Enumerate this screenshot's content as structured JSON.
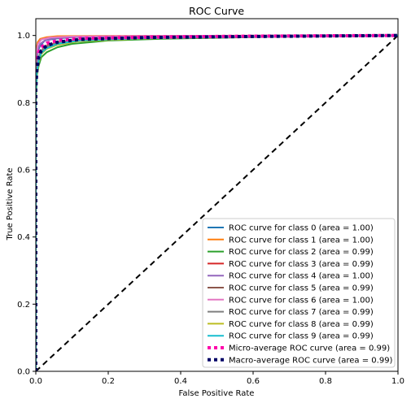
{
  "chart_data": {
    "type": "line",
    "title": "ROC Curve",
    "xlabel": "False Positive Rate",
    "ylabel": "True Positive Rate",
    "xlim": [
      0.0,
      1.0
    ],
    "ylim": [
      0.0,
      1.05
    ],
    "xticks": [
      "0.0",
      "0.2",
      "0.4",
      "0.6",
      "0.8",
      "1.0"
    ],
    "yticks": [
      "0.0",
      "0.2",
      "0.4",
      "0.6",
      "0.8",
      "1.0"
    ],
    "grid": false,
    "legend_position": "lower-right",
    "series": [
      {
        "name": "ROC curve for class 0 (area = 1.00)",
        "color": "#1f77b4",
        "style": "solid",
        "points": [
          [
            0,
            0
          ],
          [
            0,
            0.85
          ],
          [
            0.002,
            0.92
          ],
          [
            0.006,
            0.955
          ],
          [
            0.012,
            0.97
          ],
          [
            0.025,
            0.985
          ],
          [
            0.05,
            0.99
          ],
          [
            0.1,
            0.995
          ],
          [
            0.3,
            0.998
          ],
          [
            0.6,
            0.999
          ],
          [
            1,
            1
          ]
        ]
      },
      {
        "name": "ROC curve for class 1 (area = 1.00)",
        "color": "#ff7f0e",
        "style": "solid",
        "points": [
          [
            0,
            0
          ],
          [
            0,
            0.92
          ],
          [
            0.002,
            0.96
          ],
          [
            0.005,
            0.98
          ],
          [
            0.012,
            0.99
          ],
          [
            0.03,
            0.995
          ],
          [
            0.06,
            0.998
          ],
          [
            0.2,
            0.999
          ],
          [
            1,
            1
          ]
        ]
      },
      {
        "name": "ROC curve for class 2 (area = 0.99)",
        "color": "#2ca02c",
        "style": "solid",
        "points": [
          [
            0,
            0
          ],
          [
            0,
            0.8
          ],
          [
            0.003,
            0.88
          ],
          [
            0.008,
            0.91
          ],
          [
            0.015,
            0.935
          ],
          [
            0.03,
            0.95
          ],
          [
            0.06,
            0.965
          ],
          [
            0.1,
            0.975
          ],
          [
            0.2,
            0.985
          ],
          [
            0.35,
            0.99
          ],
          [
            0.6,
            0.995
          ],
          [
            1,
            1
          ]
        ]
      },
      {
        "name": "ROC curve for class 3 (area = 0.99)",
        "color": "#d62728",
        "style": "solid",
        "points": [
          [
            0,
            0
          ],
          [
            0,
            0.84
          ],
          [
            0.003,
            0.9
          ],
          [
            0.008,
            0.935
          ],
          [
            0.015,
            0.955
          ],
          [
            0.03,
            0.97
          ],
          [
            0.06,
            0.98
          ],
          [
            0.12,
            0.988
          ],
          [
            0.3,
            0.994
          ],
          [
            0.6,
            0.997
          ],
          [
            1,
            1
          ]
        ]
      },
      {
        "name": "ROC curve for class 4 (area = 1.00)",
        "color": "#9467bd",
        "style": "solid",
        "points": [
          [
            0,
            0
          ],
          [
            0,
            0.88
          ],
          [
            0.002,
            0.93
          ],
          [
            0.006,
            0.96
          ],
          [
            0.012,
            0.975
          ],
          [
            0.025,
            0.985
          ],
          [
            0.05,
            0.992
          ],
          [
            0.1,
            0.996
          ],
          [
            0.3,
            0.998
          ],
          [
            1,
            1
          ]
        ]
      },
      {
        "name": "ROC curve for class 5 (area = 0.99)",
        "color": "#8c564b",
        "style": "solid",
        "points": [
          [
            0,
            0
          ],
          [
            0,
            0.82
          ],
          [
            0.003,
            0.89
          ],
          [
            0.008,
            0.93
          ],
          [
            0.015,
            0.95
          ],
          [
            0.03,
            0.965
          ],
          [
            0.06,
            0.978
          ],
          [
            0.12,
            0.987
          ],
          [
            0.3,
            0.993
          ],
          [
            0.6,
            0.997
          ],
          [
            1,
            1
          ]
        ]
      },
      {
        "name": "ROC curve for class 6 (area = 1.00)",
        "color": "#e377c2",
        "style": "solid",
        "points": [
          [
            0,
            0
          ],
          [
            0,
            0.9
          ],
          [
            0.002,
            0.95
          ],
          [
            0.006,
            0.975
          ],
          [
            0.015,
            0.988
          ],
          [
            0.04,
            0.994
          ],
          [
            0.1,
            0.997
          ],
          [
            0.3,
            0.999
          ],
          [
            1,
            1
          ]
        ]
      },
      {
        "name": "ROC curve for class 7 (area = 0.99)",
        "color": "#7f7f7f",
        "style": "solid",
        "points": [
          [
            0,
            0
          ],
          [
            0,
            0.83
          ],
          [
            0.003,
            0.9
          ],
          [
            0.008,
            0.935
          ],
          [
            0.015,
            0.955
          ],
          [
            0.03,
            0.968
          ],
          [
            0.06,
            0.978
          ],
          [
            0.12,
            0.986
          ],
          [
            0.3,
            0.993
          ],
          [
            0.6,
            0.997
          ],
          [
            1,
            1
          ]
        ]
      },
      {
        "name": "ROC curve for class 8 (area = 0.99)",
        "color": "#bcbd22",
        "style": "solid",
        "points": [
          [
            0,
            0
          ],
          [
            0,
            0.8
          ],
          [
            0.003,
            0.88
          ],
          [
            0.008,
            0.92
          ],
          [
            0.015,
            0.945
          ],
          [
            0.03,
            0.96
          ],
          [
            0.06,
            0.972
          ],
          [
            0.12,
            0.983
          ],
          [
            0.3,
            0.991
          ],
          [
            0.6,
            0.996
          ],
          [
            1,
            1
          ]
        ]
      },
      {
        "name": "ROC curve for class 9 (area = 0.99)",
        "color": "#17becf",
        "style": "solid",
        "points": [
          [
            0,
            0
          ],
          [
            0,
            0.82
          ],
          [
            0.003,
            0.89
          ],
          [
            0.008,
            0.925
          ],
          [
            0.015,
            0.948
          ],
          [
            0.03,
            0.962
          ],
          [
            0.06,
            0.975
          ],
          [
            0.12,
            0.985
          ],
          [
            0.3,
            0.992
          ],
          [
            0.6,
            0.996
          ],
          [
            1,
            1
          ]
        ]
      },
      {
        "name": "Micro-average ROC curve (area = 0.99)",
        "color": "#ff00aa",
        "style": "dotted",
        "points": [
          [
            0,
            0
          ],
          [
            0,
            0.86
          ],
          [
            0.003,
            0.92
          ],
          [
            0.008,
            0.95
          ],
          [
            0.015,
            0.965
          ],
          [
            0.03,
            0.977
          ],
          [
            0.06,
            0.985
          ],
          [
            0.12,
            0.991
          ],
          [
            0.3,
            0.995
          ],
          [
            0.6,
            0.998
          ],
          [
            1,
            1
          ]
        ]
      },
      {
        "name": "Macro-average ROC curve (area = 0.99)",
        "color": "#000066",
        "style": "dotted",
        "points": [
          [
            0,
            0
          ],
          [
            0,
            0.84
          ],
          [
            0.003,
            0.9
          ],
          [
            0.008,
            0.935
          ],
          [
            0.015,
            0.955
          ],
          [
            0.03,
            0.97
          ],
          [
            0.06,
            0.98
          ],
          [
            0.12,
            0.988
          ],
          [
            0.3,
            0.994
          ],
          [
            0.6,
            0.997
          ],
          [
            1,
            1
          ]
        ]
      }
    ],
    "reference_line": {
      "color": "#000000",
      "style": "dashed",
      "points": [
        [
          0,
          0
        ],
        [
          1,
          1
        ]
      ]
    }
  }
}
